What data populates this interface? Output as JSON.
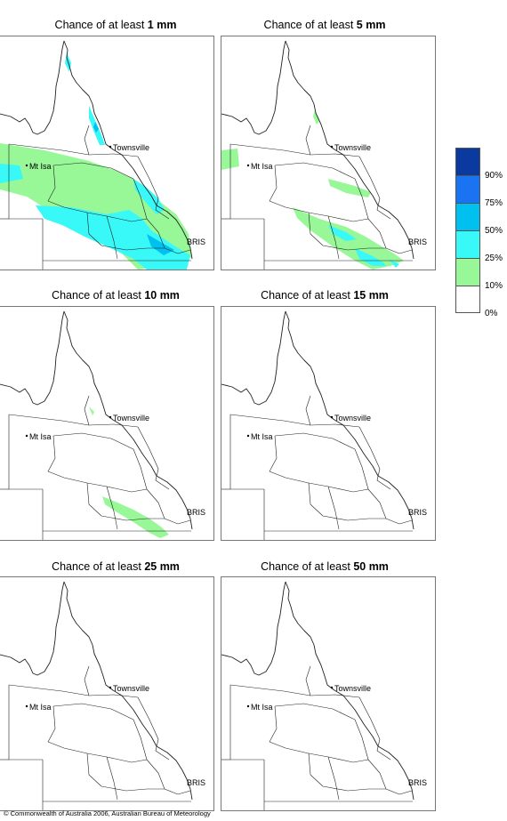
{
  "panels": [
    {
      "prefix": "Chance of at least ",
      "amount": "1 mm"
    },
    {
      "prefix": "Chance of at least ",
      "amount": "5 mm"
    },
    {
      "prefix": "Chance of at least ",
      "amount": "10 mm"
    },
    {
      "prefix": "Chance of at least ",
      "amount": "15 mm"
    },
    {
      "prefix": "Chance of at least ",
      "amount": "25 mm"
    },
    {
      "prefix": "Chance of at least ",
      "amount": "50 mm"
    }
  ],
  "places": {
    "townsville": "Townsville",
    "mt_isa": "Mt Isa",
    "bris": "BRIS"
  },
  "legend": {
    "labels": [
      "90%",
      "75%",
      "50%",
      "25%",
      "10%",
      "0%"
    ],
    "colors": [
      "#0a3aa0",
      "#1a73f0",
      "#00c0f0",
      "#38f8f8",
      "#98f898",
      "#ffffff"
    ]
  },
  "footer": {
    "copyright": "© Commonwealth of Australia 2006, Australian Bureau of Meteorology"
  }
}
